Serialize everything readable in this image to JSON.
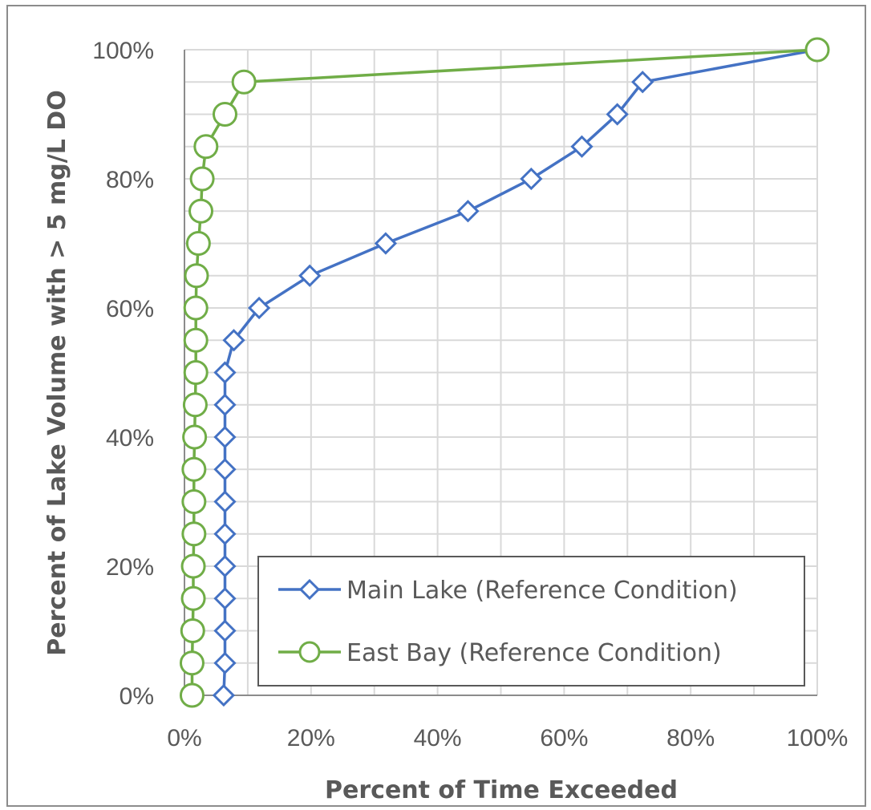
{
  "chart_data": {
    "type": "line",
    "title": "",
    "xlabel": "Percent of Time Exceeded",
    "ylabel": "Percent of Lake Volume with > 5 mg/L DO",
    "xlim": [
      0,
      100
    ],
    "ylim": [
      0,
      100
    ],
    "x_ticks": [
      "0%",
      "20%",
      "40%",
      "60%",
      "80%",
      "100%"
    ],
    "y_ticks": [
      "0%",
      "20%",
      "40%",
      "60%",
      "80%",
      "100%"
    ],
    "grid": true,
    "legend_position": "bottom-right",
    "series": [
      {
        "name": "Main Lake (Reference Condition)",
        "color": "#4472c4",
        "marker": "diamond",
        "x": [
          6.2,
          6.4,
          6.4,
          6.4,
          6.4,
          6.4,
          6.4,
          6.4,
          6.4,
          6.4,
          6.4,
          7.8,
          11.8,
          19.8,
          31.8,
          44.8,
          54.8,
          62.8,
          68.4,
          72.4,
          100
        ],
        "y": [
          0,
          5,
          10,
          15,
          20,
          25,
          30,
          35,
          40,
          45,
          50,
          55,
          60,
          65,
          70,
          75,
          80,
          85,
          90,
          95,
          100
        ]
      },
      {
        "name": "East Bay (Reference Condition)",
        "color": "#70ad47",
        "marker": "circle",
        "x": [
          1.2,
          1.2,
          1.3,
          1.4,
          1.4,
          1.5,
          1.5,
          1.5,
          1.6,
          1.7,
          1.8,
          1.8,
          1.8,
          1.9,
          2.2,
          2.6,
          2.8,
          3.4,
          6.4,
          9.4,
          100
        ],
        "y": [
          0,
          5,
          10,
          15,
          20,
          25,
          30,
          35,
          40,
          45,
          50,
          55,
          60,
          65,
          70,
          75,
          80,
          85,
          90,
          95,
          100
        ]
      }
    ]
  }
}
